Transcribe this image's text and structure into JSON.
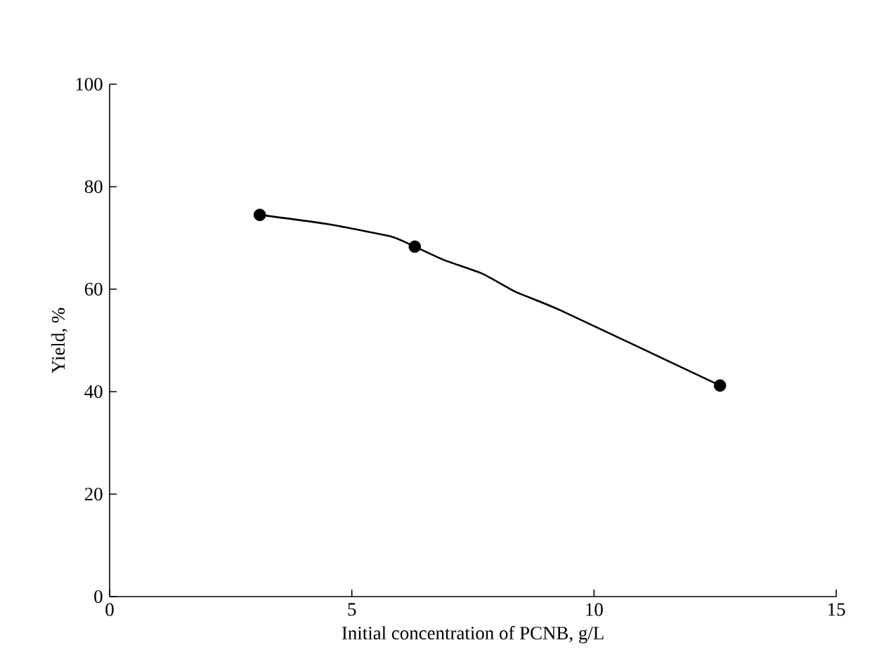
{
  "chart_data": {
    "type": "line",
    "xlabel": "Initial concentration of PCNB, g/L",
    "ylabel": "Yield, %",
    "xlim": [
      0,
      15
    ],
    "xticks": [
      0,
      5,
      10,
      15
    ],
    "ylim": [
      0,
      100
    ],
    "yticks": [
      0,
      20,
      40,
      60,
      80,
      100
    ],
    "grid": false,
    "series": [
      {
        "color": "#000000",
        "marker": "none",
        "x": [
          3.1,
          4.5,
          5.8,
          6.3,
          6.9,
          7.7,
          8.4,
          9.3,
          12.6
        ],
        "values": [
          74.5,
          72.7,
          70.3,
          68.3,
          65.7,
          63.0,
          59.4,
          55.9,
          41.2
        ]
      },
      {
        "type": "scatter",
        "color": "#000000",
        "marker": "circle",
        "x": [
          3.1,
          6.3,
          12.6
        ],
        "values": [
          74.5,
          68.3,
          41.2
        ]
      }
    ]
  }
}
